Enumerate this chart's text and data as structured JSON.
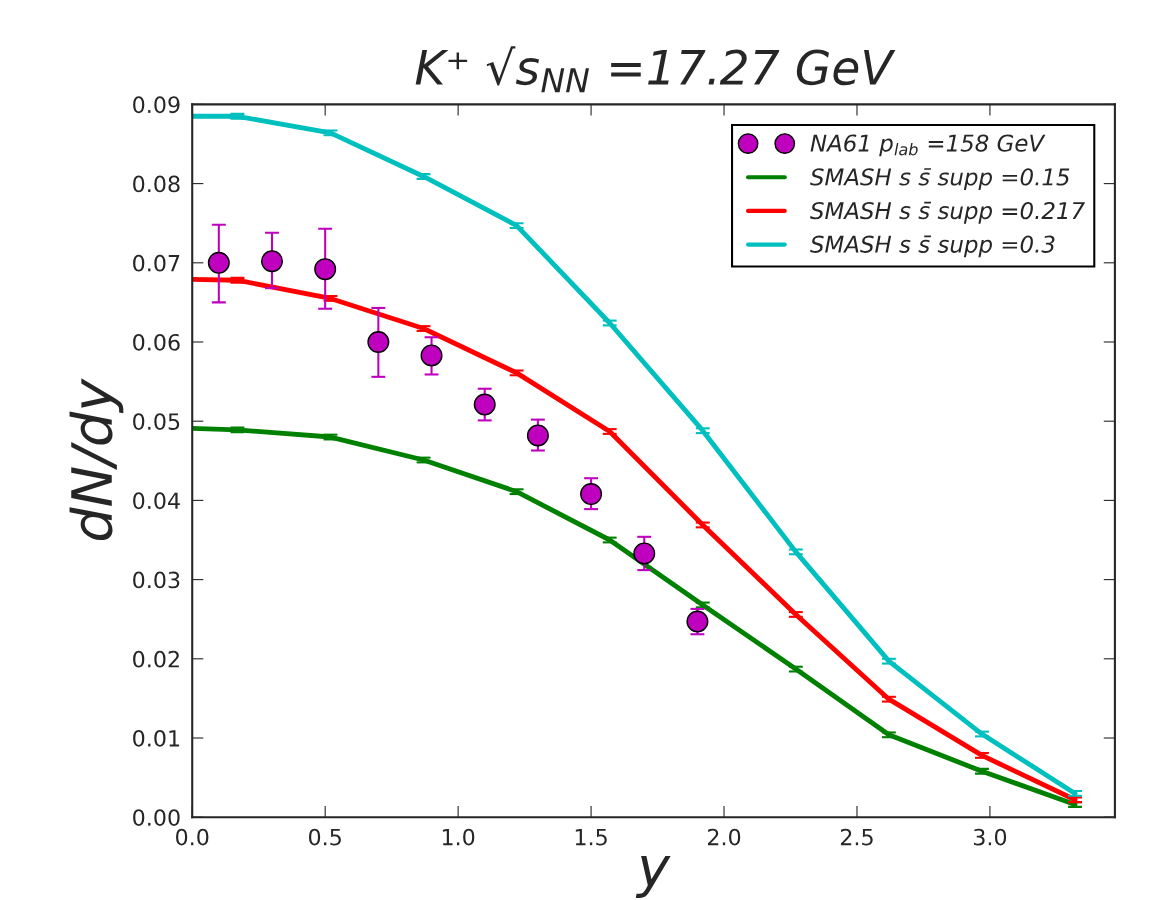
{
  "chart_data": {
    "type": "line",
    "title": "K⁺ √s$_{NN}$ =17.27 GeV",
    "xlabel": "y",
    "ylabel": "dN/dy",
    "xlim": [
      0,
      3.47
    ],
    "xticks": [
      {
        "value": 0,
        "label": "0.0"
      },
      {
        "value": 0.5,
        "label": "0.5"
      },
      {
        "value": 1,
        "label": "1.0"
      },
      {
        "value": 1.5,
        "label": "1.5"
      },
      {
        "value": 2,
        "label": "2.0"
      },
      {
        "value": 2.5,
        "label": "2.5"
      },
      {
        "value": 3,
        "label": "3.0"
      }
    ],
    "ylim": [
      0,
      0.09
    ],
    "yticks": [
      {
        "value": 0,
        "label": "0.00"
      },
      {
        "value": 0.01,
        "label": "0.01"
      },
      {
        "value": 0.02,
        "label": "0.02"
      },
      {
        "value": 0.03,
        "label": "0.03"
      },
      {
        "value": 0.04,
        "label": "0.04"
      },
      {
        "value": 0.05,
        "label": "0.05"
      },
      {
        "value": 0.06,
        "label": "0.06"
      },
      {
        "value": 0.07,
        "label": "0.07"
      },
      {
        "value": 0.08,
        "label": "0.08"
      },
      {
        "value": 0.09,
        "label": "0.09"
      }
    ],
    "grid": false,
    "legend": "top right",
    "series": [
      {
        "name": "NA61 p$_{lab}$ =158 GeV",
        "type": "scatter",
        "marker": "circle",
        "color": "#bf00bf",
        "x": [
          0.1,
          0.3,
          0.5,
          0.7,
          0.9,
          1.1,
          1.3,
          1.5,
          1.7,
          1.9
        ],
        "values": [
          0.07,
          0.0702,
          0.0692,
          0.06,
          0.0583,
          0.0521,
          0.0482,
          0.0408,
          0.0333,
          0.0247
        ],
        "errors": [
          [
            0.065,
            0.0748
          ],
          [
            0.0668,
            0.0738
          ],
          [
            0.0642,
            0.0743
          ],
          [
            0.0556,
            0.0643
          ],
          [
            0.0559,
            0.0606
          ],
          [
            0.0501,
            0.0541
          ],
          [
            0.0463,
            0.0502
          ],
          [
            0.0389,
            0.0428
          ],
          [
            0.0312,
            0.0354
          ],
          [
            0.0231,
            0.0263
          ]
        ]
      },
      {
        "name": "SMASH s s̄ supp =0.15",
        "color": "#008000",
        "x": [
          0,
          0.17,
          0.52,
          0.87,
          1.22,
          1.57,
          1.92,
          2.27,
          2.62,
          2.97,
          3.32
        ],
        "values": [
          0.0491,
          0.0489,
          0.048,
          0.0451,
          0.0411,
          0.035,
          0.0268,
          0.0187,
          0.0104,
          0.0058,
          0.0016
        ],
        "errors": [
          null,
          0.0003,
          0.0003,
          0.0003,
          0.0003,
          0.0003,
          0.0003,
          0.0003,
          0.0003,
          0.0003,
          0.0003
        ]
      },
      {
        "name": "SMASH s s̄ supp =0.217",
        "color": "#ff0000",
        "x": [
          0,
          0.17,
          0.52,
          0.87,
          1.22,
          1.57,
          1.92,
          2.27,
          2.62,
          2.97,
          3.32
        ],
        "values": [
          0.0679,
          0.0678,
          0.0655,
          0.0617,
          0.0561,
          0.0487,
          0.0369,
          0.0256,
          0.0149,
          0.0078,
          0.0022
        ],
        "errors": [
          null,
          0.0003,
          0.0003,
          0.0003,
          0.0003,
          0.0003,
          0.0003,
          0.0003,
          0.0003,
          0.0003,
          0.0003
        ]
      },
      {
        "name": "SMASH s s̄ supp =0.3",
        "color": "#00bfbf",
        "x": [
          0,
          0.17,
          0.52,
          0.87,
          1.22,
          1.57,
          1.92,
          2.27,
          2.62,
          2.97,
          3.32
        ],
        "values": [
          0.0885,
          0.0885,
          0.0864,
          0.0809,
          0.0747,
          0.0624,
          0.0488,
          0.0335,
          0.0197,
          0.0105,
          0.003
        ],
        "errors": [
          null,
          0.0003,
          0.0003,
          0.0003,
          0.0003,
          0.0003,
          0.0003,
          0.0003,
          0.0003,
          0.0003,
          0.0003
        ]
      }
    ]
  }
}
